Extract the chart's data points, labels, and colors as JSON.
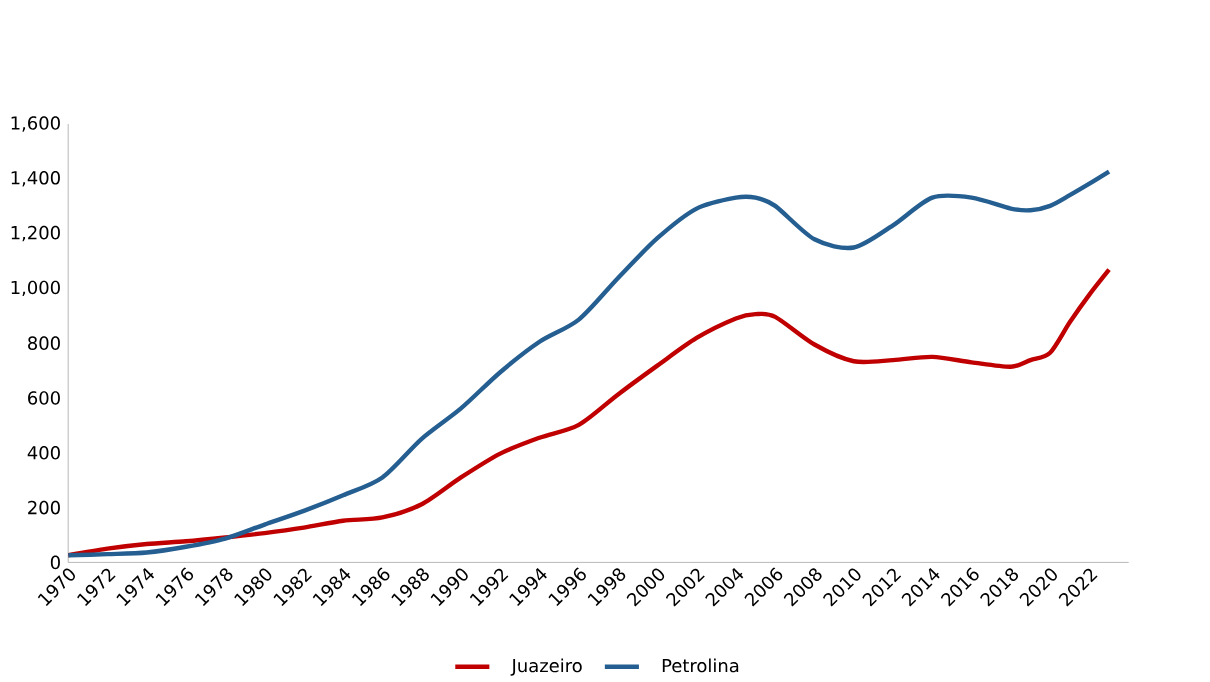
{
  "chart_data": {
    "type": "line",
    "x": [
      1970,
      1972,
      1974,
      1976,
      1978,
      1980,
      1982,
      1984,
      1986,
      1988,
      1990,
      1992,
      1994,
      1996,
      1998,
      2000,
      2002,
      2004,
      2005,
      2006,
      2008,
      2010,
      2012,
      2014,
      2016,
      2018,
      2019,
      2020,
      2021,
      2022,
      2023
    ],
    "series": [
      {
        "name": "Juazeiro",
        "color": "#c00000",
        "values": [
          26,
          50,
          67,
          77,
          91,
          107,
          127,
          152,
          164,
          212,
          310,
          397,
          455,
          502,
          613,
          718,
          819,
          890,
          906,
          896,
          795,
          734,
          738,
          750,
          730,
          714,
          738,
          765,
          876,
          977,
          1068
        ]
      },
      {
        "name": "Petrolina",
        "color": "#255e91",
        "values": [
          26,
          30,
          36,
          57,
          87,
          138,
          188,
          245,
          310,
          451,
          562,
          694,
          805,
          886,
          1038,
          1183,
          1291,
          1331,
          1331,
          1301,
          1179,
          1149,
          1230,
          1331,
          1331,
          1291,
          1285,
          1301,
          1340,
          1382,
          1426
        ]
      }
    ],
    "xlim": [
      1970,
      2024
    ],
    "xticks": [
      1970,
      1972,
      1974,
      1976,
      1978,
      1980,
      1982,
      1984,
      1986,
      1988,
      1990,
      1992,
      1994,
      1996,
      1998,
      2000,
      2002,
      2004,
      2006,
      2008,
      2010,
      2012,
      2014,
      2016,
      2018,
      2020,
      2022
    ],
    "ylim": [
      0,
      1600
    ],
    "yticks": [
      0,
      200,
      400,
      600,
      800,
      {
        "value": 1000,
        "label": "1,000"
      },
      {
        "value": 1200,
        "label": "1,200"
      },
      {
        "value": 1400,
        "label": "1,400"
      },
      {
        "value": 1600,
        "label": "1,600"
      }
    ],
    "legend": "bottom",
    "grid": false,
    "marker": "none",
    "line_style": "solid"
  }
}
